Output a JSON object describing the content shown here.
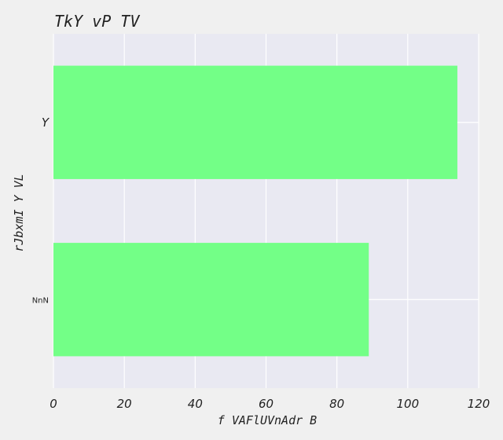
{
  "chart_data": {
    "type": "bar",
    "orientation": "horizontal",
    "title": "TkY  vP   TV",
    "xlabel": "f VAFlUVnAdr B",
    "ylabel": "rJbxmI Y VL",
    "categories": [
      "Y",
      "NnN"
    ],
    "values": [
      114,
      89
    ],
    "xlim": [
      0,
      120
    ],
    "xticks": [
      0,
      20,
      40,
      60,
      80,
      100,
      120
    ],
    "grid": true,
    "bar_color": "#73ff87",
    "plot_background": "#e9e9f2",
    "page_background": "#f0f0f0"
  }
}
